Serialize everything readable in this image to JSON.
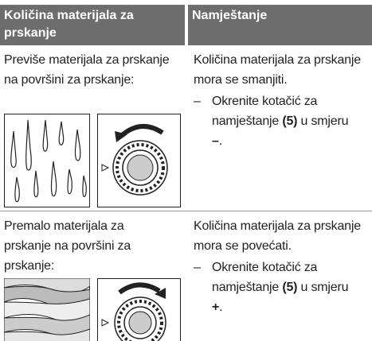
{
  "table": {
    "header": [
      "Količina materijala za prskanje",
      "Namještanje"
    ],
    "rows": [
      {
        "condition": "Previše materijala za prskanje na površini za prskanje:",
        "action": "Količina materijala za prskanje mora se smanjiti.",
        "step": {
          "bullet": "–",
          "text": "Okrenite kotačić za namještanje",
          "ref": "(5)",
          "mid": "u smjeru",
          "direction": "–",
          "end": "."
        }
      },
      {
        "condition": "Premalo materijala za prskanje na površini za prskanje:",
        "action": "Količina materijala za prskanje mora se povećati.",
        "step": {
          "bullet": "–",
          "text": "Okrenite kotačić za namještanje",
          "ref": "(5)",
          "mid": "u smjeru",
          "direction": "+",
          "end": "."
        }
      }
    ]
  }
}
